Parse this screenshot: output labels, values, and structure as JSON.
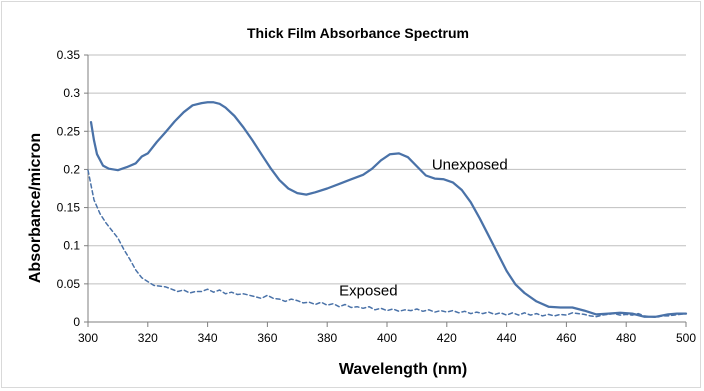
{
  "chart_data": {
    "type": "line",
    "title": "Thick Film Absorbance Spectrum",
    "xlabel": "Wavelength (nm)",
    "ylabel": "Absorbance/micron",
    "xlim": [
      300,
      500
    ],
    "ylim": [
      0,
      0.35
    ],
    "x_ticks": [
      "300",
      "320",
      "340",
      "360",
      "380",
      "400",
      "420",
      "440",
      "460",
      "480",
      "500"
    ],
    "y_ticks": [
      "0",
      "0.05",
      "0.1",
      "0.15",
      "0.2",
      "0.25",
      "0.3",
      "0.35"
    ],
    "grid": "horizontal",
    "legend": "none",
    "colors": {
      "line": "#4a72a8",
      "grid": "#bfbfbf",
      "axis": "#7f7f7f"
    },
    "series": [
      {
        "name": "Unexposed",
        "style": "solid",
        "x": [
          301,
          302,
          303,
          305,
          307,
          310,
          313,
          316,
          318,
          320,
          323,
          326,
          329,
          332,
          335,
          338,
          340,
          342,
          344,
          346,
          349,
          352,
          355,
          358,
          361,
          364,
          367,
          370,
          373,
          376,
          380,
          384,
          388,
          392,
          395,
          398,
          401,
          404,
          407,
          410,
          413,
          416,
          419,
          422,
          425,
          428,
          431,
          434,
          437,
          440,
          443,
          446,
          450,
          454,
          458,
          462,
          466,
          470,
          474,
          478,
          482,
          486,
          490,
          494,
          497,
          500
        ],
        "y": [
          0.262,
          0.238,
          0.22,
          0.205,
          0.201,
          0.199,
          0.203,
          0.208,
          0.217,
          0.221,
          0.236,
          0.249,
          0.263,
          0.275,
          0.284,
          0.287,
          0.288,
          0.288,
          0.286,
          0.281,
          0.27,
          0.255,
          0.238,
          0.22,
          0.202,
          0.186,
          0.175,
          0.169,
          0.167,
          0.17,
          0.175,
          0.181,
          0.187,
          0.193,
          0.201,
          0.212,
          0.22,
          0.221,
          0.216,
          0.204,
          0.192,
          0.188,
          0.187,
          0.183,
          0.173,
          0.157,
          0.136,
          0.113,
          0.09,
          0.067,
          0.049,
          0.038,
          0.027,
          0.02,
          0.019,
          0.019,
          0.015,
          0.01,
          0.011,
          0.012,
          0.011,
          0.007,
          0.007,
          0.01,
          0.011,
          0.011
        ]
      },
      {
        "name": "Exposed",
        "style": "dashed",
        "x": [
          300,
          302,
          304,
          306,
          308,
          310,
          312,
          314,
          316,
          318,
          320,
          322,
          324,
          326,
          328,
          330,
          332,
          334,
          336,
          338,
          340,
          342,
          344,
          346,
          348,
          350,
          352,
          354,
          356,
          358,
          360,
          362,
          364,
          366,
          368,
          370,
          372,
          374,
          376,
          378,
          380,
          382,
          384,
          386,
          388,
          390,
          392,
          394,
          396,
          398,
          400,
          402,
          404,
          406,
          408,
          410,
          412,
          414,
          416,
          418,
          420,
          422,
          424,
          426,
          428,
          430,
          432,
          434,
          436,
          438,
          440,
          442,
          444,
          446,
          448,
          450,
          452,
          454,
          456,
          458,
          460,
          462,
          464,
          466,
          468,
          470,
          472,
          474,
          476,
          478,
          480,
          482,
          484,
          486,
          488,
          490,
          492,
          494,
          496,
          498,
          500
        ],
        "y": [
          0.199,
          0.16,
          0.142,
          0.13,
          0.12,
          0.11,
          0.095,
          0.082,
          0.068,
          0.058,
          0.053,
          0.048,
          0.047,
          0.046,
          0.043,
          0.04,
          0.042,
          0.038,
          0.04,
          0.04,
          0.043,
          0.039,
          0.042,
          0.037,
          0.039,
          0.036,
          0.037,
          0.035,
          0.033,
          0.031,
          0.035,
          0.031,
          0.03,
          0.027,
          0.03,
          0.028,
          0.025,
          0.026,
          0.023,
          0.026,
          0.022,
          0.024,
          0.02,
          0.023,
          0.019,
          0.02,
          0.018,
          0.02,
          0.016,
          0.018,
          0.015,
          0.017,
          0.014,
          0.016,
          0.015,
          0.017,
          0.014,
          0.016,
          0.013,
          0.015,
          0.013,
          0.015,
          0.012,
          0.014,
          0.011,
          0.013,
          0.011,
          0.013,
          0.01,
          0.012,
          0.009,
          0.012,
          0.009,
          0.012,
          0.009,
          0.011,
          0.008,
          0.01,
          0.008,
          0.01,
          0.009,
          0.012,
          0.011,
          0.01,
          0.008,
          0.007,
          0.009,
          0.01,
          0.011,
          0.009,
          0.01,
          0.009,
          0.011,
          0.008,
          0.007,
          0.006,
          0.008,
          0.008,
          0.009,
          0.01,
          0.011
        ]
      }
    ],
    "annotations": [
      {
        "text": "Unexposed",
        "x": 415,
        "y": 0.2
      },
      {
        "text": "Exposed",
        "x": 384,
        "y": 0.035
      }
    ]
  }
}
